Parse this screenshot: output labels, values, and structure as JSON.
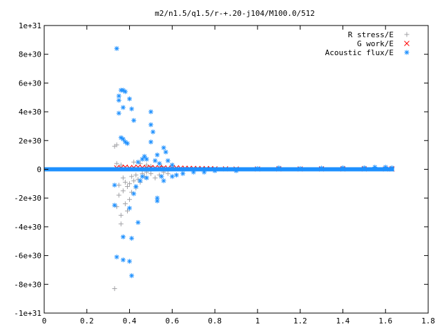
{
  "chart_data": {
    "type": "scatter",
    "title": "m2/n1.5/q1.5/r-+.20-j104/M100.0/512",
    "xlabel": "",
    "ylabel": "",
    "xlim": [
      0,
      1.8
    ],
    "ylim": [
      -1e+31,
      1e+31
    ],
    "x_ticks": [
      0,
      0.2,
      0.4,
      0.6,
      0.8,
      1,
      1.2,
      1.4,
      1.6,
      1.8
    ],
    "x_tick_labels": [
      "0",
      "0.2",
      "0.4",
      "0.6",
      "0.8",
      "1",
      "1.2",
      "1.4",
      "1.6",
      "1.8"
    ],
    "y_ticks": [
      1e+31,
      8e+30,
      6e+30,
      4e+30,
      2e+30,
      0,
      -2e+30,
      -4e+30,
      -6e+30,
      -8e+30,
      -1e+31
    ],
    "y_tick_labels": [
      "1e+31",
      "8e+30",
      "6e+30",
      "4e+30",
      "2e+30",
      "0",
      "-2e+30",
      "-4e+30",
      "-6e+30",
      "-8e+30",
      "-1e+31"
    ],
    "grid": false,
    "legend_position": "top-right",
    "series": [
      {
        "name": "R stress/E",
        "color": "#a0a0a4",
        "marker": "plus",
        "points": [
          [
            0.33,
            1.6e+30
          ],
          [
            0.34,
            1.7e+30
          ],
          [
            0.33,
            -8.3e+30
          ],
          [
            0.34,
            -2.6e+30
          ],
          [
            0.35,
            -1.8e+30
          ],
          [
            0.35,
            -1.1e+30
          ],
          [
            0.36,
            -3.2e+30
          ],
          [
            0.36,
            -3.8e+30
          ],
          [
            0.37,
            -6e+29
          ],
          [
            0.37,
            -1.5e+30
          ],
          [
            0.38,
            -2.4e+30
          ],
          [
            0.38,
            -9e+29
          ],
          [
            0.39,
            -2.9e+30
          ],
          [
            0.39,
            -1.2e+30
          ],
          [
            0.4,
            -1e+30
          ],
          [
            0.4,
            -2.1e+30
          ],
          [
            0.41,
            -5e+29
          ],
          [
            0.41,
            -1.6e+30
          ],
          [
            0.42,
            -8e+29
          ],
          [
            0.43,
            -1.3e+30
          ],
          [
            0.43,
            -4e+29
          ],
          [
            0.44,
            -7e+29
          ],
          [
            0.45,
            -9e+29
          ],
          [
            0.46,
            -3e+29
          ],
          [
            0.47,
            -5e+29
          ],
          [
            0.48,
            -2e+29
          ],
          [
            0.5,
            -3e+29
          ],
          [
            0.52,
            -6e+29
          ],
          [
            0.54,
            -4e+29
          ],
          [
            0.56,
            -2e+29
          ],
          [
            0.58,
            -3e+29
          ],
          [
            0.34,
            4e+29
          ],
          [
            0.36,
            3e+29
          ],
          [
            0.42,
            5e+29
          ],
          [
            0.45,
            4e+29
          ],
          [
            0.48,
            3e+29
          ],
          [
            0.5,
            2e+29
          ],
          [
            0.55,
            2e+29
          ],
          [
            0.6,
            1e+29
          ],
          [
            0.65,
            -1e+29
          ]
        ]
      },
      {
        "name": "G work/E",
        "color": "#ff0000",
        "marker": "cross",
        "points": [
          [
            0.34,
            1e+29
          ],
          [
            0.36,
            1e+29
          ],
          [
            0.38,
            1.5e+29
          ],
          [
            0.4,
            1e+29
          ],
          [
            0.42,
            1.2e+29
          ],
          [
            0.44,
            1.5e+29
          ],
          [
            0.46,
            1.2e+29
          ],
          [
            0.48,
            1e+29
          ],
          [
            0.5,
            1.2e+29
          ],
          [
            0.52,
            1e+29
          ],
          [
            0.54,
            1e+29
          ],
          [
            0.56,
            1e+29
          ],
          [
            0.58,
            8e+28
          ],
          [
            0.6,
            8e+28
          ],
          [
            0.62,
            1e+29
          ],
          [
            0.64,
            8e+28
          ],
          [
            0.66,
            7e+28
          ],
          [
            0.68,
            6e+28
          ],
          [
            0.7,
            6e+28
          ],
          [
            0.72,
            5e+28
          ],
          [
            0.74,
            5e+28
          ],
          [
            0.76,
            4e+28
          ],
          [
            0.78,
            5e+28
          ],
          [
            0.8,
            3e+28
          ],
          [
            0.85,
            3e+28
          ],
          [
            0.9,
            2e+28
          ],
          [
            1.0,
            2e+28
          ],
          [
            1.1,
            2e+28
          ],
          [
            1.2,
            2e+28
          ],
          [
            1.3,
            2e+28
          ],
          [
            1.4,
            2e+28
          ],
          [
            1.5,
            2e+28
          ],
          [
            1.6,
            2e+28
          ],
          [
            1.63,
            2e+28
          ]
        ]
      },
      {
        "name": "Acoustic flux/E",
        "color": "#1e90ff",
        "marker": "star",
        "points": [
          [
            0.34,
            8.4e+30
          ],
          [
            0.35,
            5.1e+30
          ],
          [
            0.35,
            4.8e+30
          ],
          [
            0.36,
            5.5e+30
          ],
          [
            0.37,
            5.5e+30
          ],
          [
            0.38,
            5.4e+30
          ],
          [
            0.35,
            3.9e+30
          ],
          [
            0.37,
            4.3e+30
          ],
          [
            0.4,
            4.9e+30
          ],
          [
            0.41,
            4.2e+30
          ],
          [
            0.42,
            3.4e+30
          ],
          [
            0.36,
            2.2e+30
          ],
          [
            0.37,
            2.1e+30
          ],
          [
            0.38,
            1.9e+30
          ],
          [
            0.39,
            1.8e+30
          ],
          [
            0.5,
            4e+30
          ],
          [
            0.5,
            3.1e+30
          ],
          [
            0.51,
            2.6e+30
          ],
          [
            0.5,
            1.9e+30
          ],
          [
            0.53,
            1e+30
          ],
          [
            0.56,
            1.5e+30
          ],
          [
            0.57,
            1.2e+30
          ],
          [
            0.58,
            6e+29
          ],
          [
            0.33,
            -1.1e+30
          ],
          [
            0.33,
            -2.5e+30
          ],
          [
            0.34,
            -6.1e+30
          ],
          [
            0.37,
            -6.3e+30
          ],
          [
            0.4,
            -6.4e+30
          ],
          [
            0.41,
            -7.4e+30
          ],
          [
            0.37,
            -4.7e+30
          ],
          [
            0.41,
            -4.8e+30
          ],
          [
            0.44,
            -3.7e+30
          ],
          [
            0.4,
            -2.7e+30
          ],
          [
            0.42,
            -1.7e+30
          ],
          [
            0.43,
            -1.2e+30
          ],
          [
            0.45,
            -8e+29
          ],
          [
            0.46,
            -5e+29
          ],
          [
            0.48,
            -6e+29
          ],
          [
            0.53,
            -2.2e+30
          ],
          [
            0.53,
            -2e+30
          ],
          [
            0.56,
            -8e+29
          ],
          [
            0.55,
            -5e+29
          ],
          [
            0.6,
            -5e+29
          ],
          [
            0.62,
            -4e+29
          ],
          [
            0.65,
            -3e+29
          ],
          [
            0.47,
            9e+29
          ],
          [
            0.48,
            7e+29
          ],
          [
            0.52,
            6e+29
          ],
          [
            0.54,
            4e+29
          ],
          [
            0.6,
            3e+29
          ],
          [
            0.44,
            5e+29
          ],
          [
            0.46,
            7e+29
          ],
          [
            0.7,
            -2e+29
          ],
          [
            0.75,
            -2e+29
          ],
          [
            0.8,
            -1e+29
          ],
          [
            0.9,
            -1e+29
          ],
          [
            1.0,
            5e+28
          ],
          [
            1.1,
            1e+29
          ],
          [
            1.2,
            5e+28
          ],
          [
            1.3,
            8e+28
          ],
          [
            1.4,
            1e+29
          ],
          [
            1.5,
            1e+29
          ],
          [
            1.55,
            1.5e+29
          ],
          [
            1.6,
            1.5e+29
          ],
          [
            1.63,
            1e+29
          ]
        ],
        "baseline": {
          "x_range": [
            0.0,
            1.64
          ],
          "y": 0
        }
      }
    ]
  }
}
